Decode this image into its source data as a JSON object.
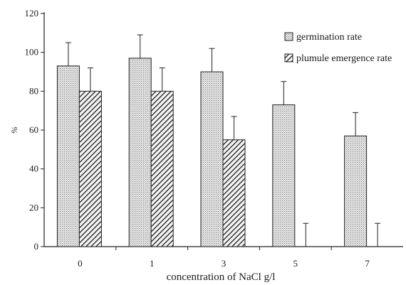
{
  "chart_data": {
    "type": "bar",
    "xlabel": "concentration of NaCl g/l",
    "ylabel": "%",
    "ylim": [
      0,
      120
    ],
    "yticks": [
      "0",
      "20",
      "40",
      "60",
      "80",
      "100",
      "120"
    ],
    "categories": [
      "0",
      "1",
      "3",
      "5",
      "7"
    ],
    "series": [
      {
        "name": "germination rate",
        "values": [
          93,
          97,
          90,
          73,
          57
        ],
        "error_upper": [
          105,
          109,
          102,
          85,
          69
        ],
        "fill": "dots",
        "color": "#cfcfcf"
      },
      {
        "name": "plumule emergence rate",
        "values": [
          80,
          80,
          55,
          0,
          0
        ],
        "error_upper": [
          92,
          92,
          67,
          12,
          12
        ],
        "fill": "diagonal-hatch",
        "color": "#222222"
      }
    ],
    "grid": false,
    "legend_position": "top-right",
    "error_bars": "upper only"
  }
}
